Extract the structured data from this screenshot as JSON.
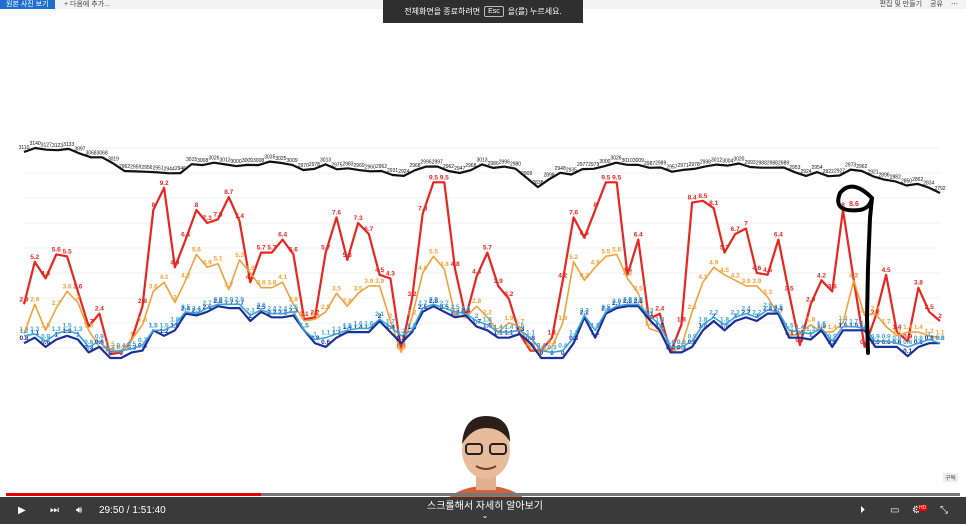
{
  "browser": {
    "active_tab": "원본 사진 보기",
    "add_tab": "다음에 추가...",
    "right_actions": [
      "편집 및 만들기",
      "공유"
    ]
  },
  "fullscreen_banner": {
    "prefix": "전체화면을 종료하려면",
    "key": "Esc",
    "suffix": "을(를) 누르세요."
  },
  "colors": {
    "black": "#111111",
    "red": "#e8251f",
    "orange": "#f0a23a",
    "blue": "#1a2f9a",
    "lightblue": "#3aa6d8"
  },
  "chart_data": {
    "type": "line",
    "series": [
      {
        "color": "black",
        "values": [
          3110,
          3140,
          3127,
          3123,
          3133,
          3097,
          3068,
          3068,
          3019,
          2962,
          2959,
          2956,
          2951,
          2944,
          2946,
          3015,
          3008,
          3026,
          3013,
          3000,
          3009,
          3008,
          3035,
          3025,
          3009,
          2970,
          2978,
          3013,
          2975,
          2983,
          2969,
          2960,
          2962,
          2931,
          2924,
          2968,
          2996,
          2997,
          2962,
          2947,
          2968,
          3013,
          2986,
          2996,
          2980,
          2909,
          2838,
          2898,
          2948,
          2935,
          2977,
          2979,
          3000,
          3026,
          3010,
          3009,
          2987,
          2989,
          2957,
          2971,
          2978,
          2998,
          3012,
          3004,
          3020,
          2993,
          2988,
          2988,
          2989,
          2953,
          2924,
          2954,
          2922,
          2927,
          2973,
          2962,
          2921,
          2896,
          2882,
          2850,
          2862,
          2834,
          2792
        ]
      },
      {
        "color": "red",
        "values": [
          2.9,
          5.2,
          4.3,
          5.6,
          5.5,
          3.6,
          1.7,
          2.4,
          0.2,
          0.3,
          1.0,
          2.8,
          8.0,
          9.2,
          4.9,
          6.4,
          8.0,
          7.3,
          7.5,
          8.7,
          7.4,
          4.1,
          5.7,
          5.7,
          6.4,
          5.6,
          2.1,
          2.2,
          5.7,
          7.6,
          5.3,
          7.3,
          6.7,
          4.5,
          4.3,
          0.4,
          3.2,
          7.8,
          9.5,
          9.5,
          4.8,
          2.2,
          4.4,
          5.7,
          3.9,
          3.2,
          1.3,
          0.4,
          0.4,
          1.1,
          4.2,
          7.6,
          6.5,
          8.0,
          9.5,
          9.5,
          4.5,
          6.4,
          2.1,
          2.4,
          0.3,
          1.8,
          8.4,
          8.5,
          8.1,
          5.7,
          6.7,
          7.0,
          4.6,
          4.5,
          6.4,
          3.5,
          0.7,
          2.9,
          4.2,
          3.6,
          8.0,
          4.2,
          0.6,
          2.2,
          4.5,
          1.4,
          0.9,
          3.8,
          2.5,
          2.0
        ]
      },
      {
        "color": "orange",
        "values": [
          1.3,
          2.9,
          1.5,
          2.7,
          3.6,
          3.0,
          1.5,
          0.6,
          0.5,
          0.3,
          1.0,
          1.8,
          3.6,
          4.1,
          3.0,
          4.2,
          5.6,
          4.9,
          5.1,
          3.7,
          5.3,
          4.6,
          3.8,
          3.8,
          4.1,
          2.9,
          2.0,
          2.1,
          2.5,
          3.5,
          2.8,
          3.5,
          3.9,
          3.9,
          2.0,
          0.3,
          2.2,
          4.6,
          5.5,
          4.8,
          2.3,
          2.2,
          2.8,
          2.2,
          1.4,
          1.9,
          1.7,
          0.5,
          0.3,
          0.6,
          1.9,
          5.2,
          4.2,
          4.9,
          5.5,
          5.6,
          4.3,
          3.5,
          1.6,
          1.4,
          0.3,
          0.6,
          2.5,
          4.1,
          4.9,
          4.5,
          4.2,
          3.9,
          3.9,
          3.3,
          2.3,
          1.2,
          1.3,
          1.8,
          1.4,
          1.4,
          1.9,
          4.2,
          2.3,
          2.4,
          1.7,
          1.2,
          1.4,
          1.4,
          1.2,
          1.1
        ]
      },
      {
        "color": "blue",
        "values": [
          0.8,
          1.1,
          0.6,
          1.0,
          1.2,
          1.0,
          0.3,
          0.6,
          0.0,
          0.0,
          0.3,
          0.4,
          1.5,
          1.2,
          1.5,
          2.4,
          2.3,
          2.5,
          2.8,
          2.7,
          2.7,
          2.0,
          2.5,
          2.2,
          2.2,
          2.3,
          1.5,
          0.8,
          0.6,
          1.1,
          1.4,
          1.4,
          1.4,
          2.0,
          1.4,
          0.8,
          1.4,
          2.5,
          2.8,
          2.5,
          2.2,
          2.3,
          1.7,
          1.5,
          1.1,
          1.1,
          1.3,
          0.8,
          0.0,
          0.0,
          0.0,
          0.8,
          2.2,
          1.1,
          2.4,
          2.7,
          2.8,
          2.8,
          2.1,
          1.5,
          0.3,
          0.3,
          0.6,
          1.5,
          2.0,
          1.5,
          2.0,
          2.2,
          2.0,
          2.4,
          2.4,
          1.1,
          1.1,
          1.0,
          1.5,
          0.6,
          1.5,
          1.5,
          1.5,
          0.6,
          0.6,
          0.6,
          0.1,
          0.6,
          0.8,
          0.8
        ]
      },
      {
        "color": "lightblue",
        "values": [
          1.2,
          1.3,
          0.9,
          1.3,
          1.5,
          1.3,
          0.6,
          0.9,
          0.3,
          0.4,
          0.5,
          0.7,
          1.5,
          1.5,
          1.8,
          2.5,
          2.4,
          2.7,
          2.9,
          2.9,
          2.9,
          2.3,
          2.6,
          2.4,
          2.4,
          2.5,
          1.5,
          1.0,
          1.1,
          1.3,
          1.5,
          1.6,
          1.6,
          2.1,
          1.7,
          1.2,
          1.5,
          2.7,
          2.9,
          2.7,
          2.5,
          2.4,
          2.0,
          1.8,
          1.4,
          1.4,
          1.5,
          1.1,
          0.4,
          0.3,
          0.4,
          1.1,
          2.3,
          1.5,
          2.5,
          2.8,
          2.9,
          2.9,
          2.3,
          1.8,
          0.6,
          0.6,
          0.9,
          1.8,
          2.2,
          1.8,
          2.2,
          2.4,
          2.2,
          2.6,
          2.5,
          1.5,
          1.4,
          1.3,
          1.6,
          0.9,
          1.7,
          1.7,
          1.6,
          0.9,
          0.9,
          0.8,
          0.6,
          0.8,
          1.0,
          0.8
        ]
      }
    ],
    "annotations": [
      {
        "text": "8.6",
        "series": "red"
      }
    ]
  },
  "corner_label": "구독",
  "player": {
    "time_current": "29:50",
    "time_total": "1:51:40",
    "progress_fraction": 0.267,
    "scroll_hint": "스크롤해서 자세히 알아보기",
    "hd_badge": "HD"
  }
}
